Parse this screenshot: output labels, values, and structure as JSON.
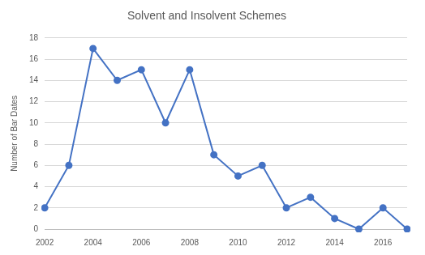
{
  "chart_data": {
    "type": "line",
    "title": "Solvent and Insolvent Schemes",
    "y_label": "Number of Bar Dates",
    "x": [
      2002,
      2003,
      2004,
      2005,
      2006,
      2007,
      2008,
      2009,
      2010,
      2011,
      2012,
      2013,
      2014,
      2015,
      2016,
      2017
    ],
    "values": [
      2,
      6,
      17,
      14,
      15,
      10,
      15,
      7,
      5,
      6,
      2,
      3,
      1,
      0,
      2,
      0
    ],
    "color": "#4472c4",
    "marker": "circle",
    "xlim": [
      2002,
      2017
    ],
    "xticks": [
      2002,
      2004,
      2006,
      2008,
      2010,
      2012,
      2014,
      2016
    ],
    "ylim": [
      0,
      18
    ],
    "yticks": [
      0,
      2,
      4,
      6,
      8,
      10,
      12,
      14,
      16,
      18
    ],
    "grid": true
  }
}
